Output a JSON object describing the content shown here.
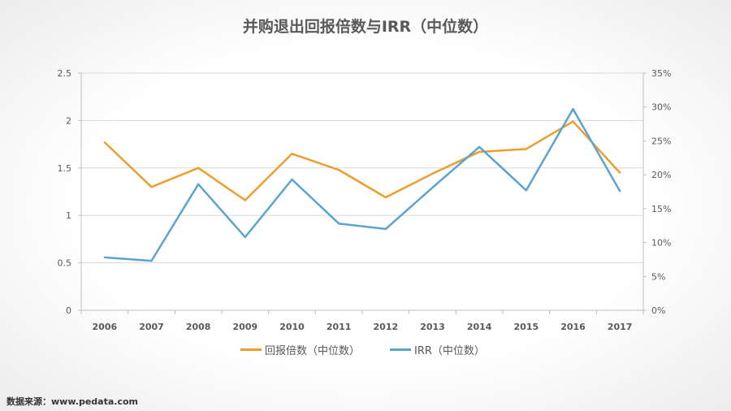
{
  "chart_data": {
    "type": "line",
    "title": "并购退出回报倍数与IRR（中位数）",
    "categories": [
      "2006",
      "2007",
      "2008",
      "2009",
      "2010",
      "2011",
      "2012",
      "2013",
      "2014",
      "2015",
      "2016",
      "2017"
    ],
    "series": [
      {
        "name": "回报倍数（中位数）",
        "axis": "left",
        "color": "#ED9E2F",
        "values": [
          1.77,
          1.3,
          1.5,
          1.16,
          1.65,
          1.48,
          1.19,
          1.44,
          1.67,
          1.7,
          1.99,
          1.45
        ]
      },
      {
        "name": "IRR（中位数）",
        "axis": "right",
        "color": "#5BA3D0",
        "values": [
          7.8,
          7.3,
          18.6,
          10.8,
          19.3,
          12.8,
          12.0,
          18.1,
          24.1,
          17.7,
          29.7,
          17.6
        ]
      }
    ],
    "y_left": {
      "range": [
        0,
        2.5
      ],
      "ticks": [
        "0",
        "0.5",
        "1",
        "1.5",
        "2",
        "2.5"
      ]
    },
    "y_right": {
      "range": [
        0,
        35
      ],
      "ticks": [
        "0%",
        "5%",
        "10%",
        "15%",
        "20%",
        "25%",
        "30%",
        "35%"
      ]
    },
    "grid": true,
    "legend_position": "bottom"
  },
  "source": "数据来源：www.pedata.com"
}
